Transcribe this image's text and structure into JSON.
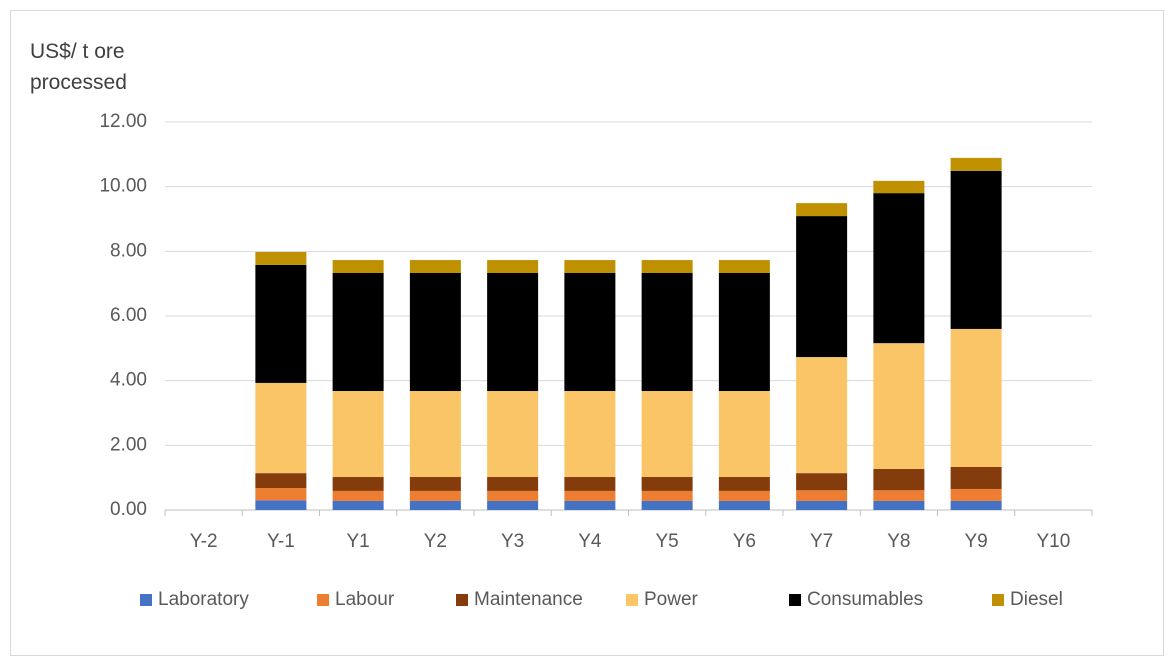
{
  "chart_data": {
    "type": "stacked_bar",
    "y_label": "US$/ t ore processed",
    "categories": [
      "Y-2",
      "Y-1",
      "Y1",
      "Y2",
      "Y3",
      "Y4",
      "Y5",
      "Y6",
      "Y7",
      "Y8",
      "Y9",
      "Y10"
    ],
    "series": [
      {
        "name": "Laboratory",
        "color": "#4472c4",
        "values": [
          null,
          0.3,
          0.28,
          0.28,
          0.28,
          0.28,
          0.28,
          0.28,
          0.28,
          0.28,
          0.28,
          null
        ]
      },
      {
        "name": "Labour",
        "color": "#ed7d31",
        "values": [
          null,
          0.38,
          0.31,
          0.31,
          0.31,
          0.31,
          0.31,
          0.31,
          0.33,
          0.33,
          0.37,
          null
        ]
      },
      {
        "name": "Maintenance",
        "color": "#843c0c",
        "values": [
          null,
          0.46,
          0.43,
          0.43,
          0.43,
          0.43,
          0.43,
          0.43,
          0.53,
          0.66,
          0.68,
          null
        ]
      },
      {
        "name": "Power",
        "color": "#f9c566",
        "values": [
          null,
          2.79,
          2.66,
          2.66,
          2.66,
          2.66,
          2.66,
          2.66,
          3.59,
          3.89,
          4.27,
          null
        ]
      },
      {
        "name": "Consumables",
        "color": "#000000",
        "values": [
          null,
          3.65,
          3.65,
          3.65,
          3.65,
          3.65,
          3.65,
          3.65,
          4.36,
          4.64,
          4.89,
          null
        ]
      },
      {
        "name": "Diesel",
        "color": "#bf9000",
        "values": [
          null,
          0.4,
          0.4,
          0.4,
          0.4,
          0.4,
          0.4,
          0.4,
          0.4,
          0.38,
          0.4,
          null
        ]
      }
    ],
    "ylim": [
      0,
      12
    ],
    "yticks": [
      {
        "value": 0,
        "label": "0.00"
      },
      {
        "value": 2,
        "label": "2.00"
      },
      {
        "value": 4,
        "label": "4.00"
      },
      {
        "value": 6,
        "label": "6.00"
      },
      {
        "value": 8,
        "label": "8.00"
      },
      {
        "value": 10,
        "label": "10.00"
      },
      {
        "value": 12,
        "label": "12.00"
      }
    ],
    "grid": true,
    "legend": "bottom"
  }
}
